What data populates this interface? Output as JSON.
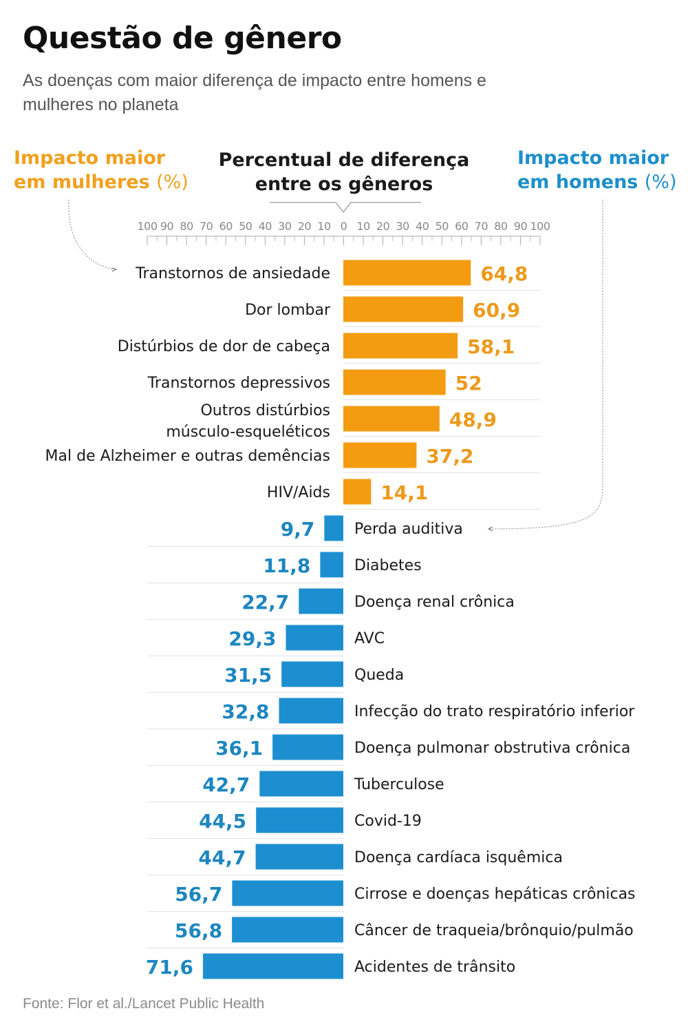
{
  "title": "Questão de gênero",
  "subtitle": "As doenças com maior diferença de impacto entre homens e mulheres no planeta",
  "header_women": {
    "text": "Impacto maior em mulheres",
    "unit": "(%)"
  },
  "header_center": "Percentual de diferença entre os gêneros",
  "header_men": {
    "text": "Impacto maior em homens",
    "unit": "(%)"
  },
  "source": "Fonte: Flor et al./Lancet Public Health",
  "colors": {
    "women": "#f39c12",
    "men": "#1d8fd0",
    "women_text": "#ec9a1c",
    "men_text": "#1d86c0"
  },
  "chart_data": {
    "type": "bar",
    "orientation": "horizontal-diverging",
    "axis_ticks": [
      "100",
      "90",
      "80",
      "70",
      "60",
      "50",
      "40",
      "30",
      "20",
      "10",
      "0",
      "10",
      "20",
      "30",
      "40",
      "50",
      "60",
      "70",
      "80",
      "90",
      "100"
    ],
    "women": [
      {
        "label": "Transtornos de ansiedade",
        "value": 64.8,
        "display": "64,8"
      },
      {
        "label": "Dor lombar",
        "value": 60.9,
        "display": "60,9"
      },
      {
        "label": "Distúrbios de dor de cabeça",
        "value": 58.1,
        "display": "58,1"
      },
      {
        "label": "Transtornos depressivos",
        "value": 52,
        "display": "52"
      },
      {
        "label": "Outros distúrbios músculo-esqueléticos",
        "value": 48.9,
        "display": "48,9"
      },
      {
        "label": "Mal de Alzheimer e outras demências",
        "value": 37.2,
        "display": "37,2"
      },
      {
        "label": "HIV/Aids",
        "value": 14.1,
        "display": "14,1"
      }
    ],
    "men": [
      {
        "label": "Perda auditiva",
        "value": 9.7,
        "display": "9,7"
      },
      {
        "label": "Diabetes",
        "value": 11.8,
        "display": "11,8"
      },
      {
        "label": "Doença renal crônica",
        "value": 22.7,
        "display": "22,7"
      },
      {
        "label": "AVC",
        "value": 29.3,
        "display": "29,3"
      },
      {
        "label": "Queda",
        "value": 31.5,
        "display": "31,5"
      },
      {
        "label": "Infecção do trato respiratório inferior",
        "value": 32.8,
        "display": "32,8"
      },
      {
        "label": "Doença pulmonar obstrutiva crônica",
        "value": 36.1,
        "display": "36,1"
      },
      {
        "label": "Tuberculose",
        "value": 42.7,
        "display": "42,7"
      },
      {
        "label": "Covid-19",
        "value": 44.5,
        "display": "44,5"
      },
      {
        "label": "Doença cardíaca isquêmica",
        "value": 44.7,
        "display": "44,7"
      },
      {
        "label": "Cirrose e doenças hepáticas crônicas",
        "value": 56.7,
        "display": "56,7"
      },
      {
        "label": "Câncer de traqueia/brônquio/pulmão",
        "value": 56.8,
        "display": "56,8"
      },
      {
        "label": "Acidentes de trânsito",
        "value": 71.6,
        "display": "71,6"
      }
    ]
  }
}
